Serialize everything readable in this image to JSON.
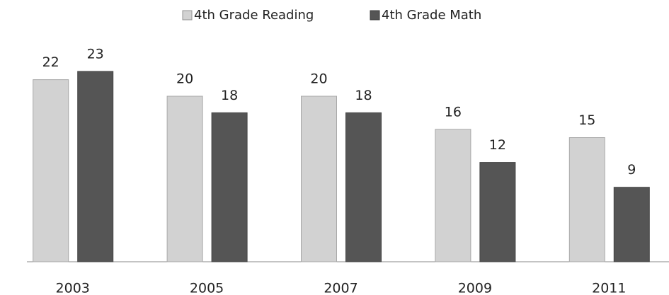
{
  "chart_data": {
    "type": "bar",
    "categories": [
      "2003",
      "2005",
      "2007",
      "2009",
      "2011"
    ],
    "series": [
      {
        "name": "4th Grade Reading",
        "color": "#d2d2d2",
        "values": [
          22,
          20,
          20,
          16,
          15
        ]
      },
      {
        "name": "4th Grade Math",
        "color": "#555555",
        "values": [
          23,
          18,
          18,
          12,
          9
        ]
      }
    ],
    "ylim": [
      0,
      25
    ],
    "legend": "top"
  }
}
